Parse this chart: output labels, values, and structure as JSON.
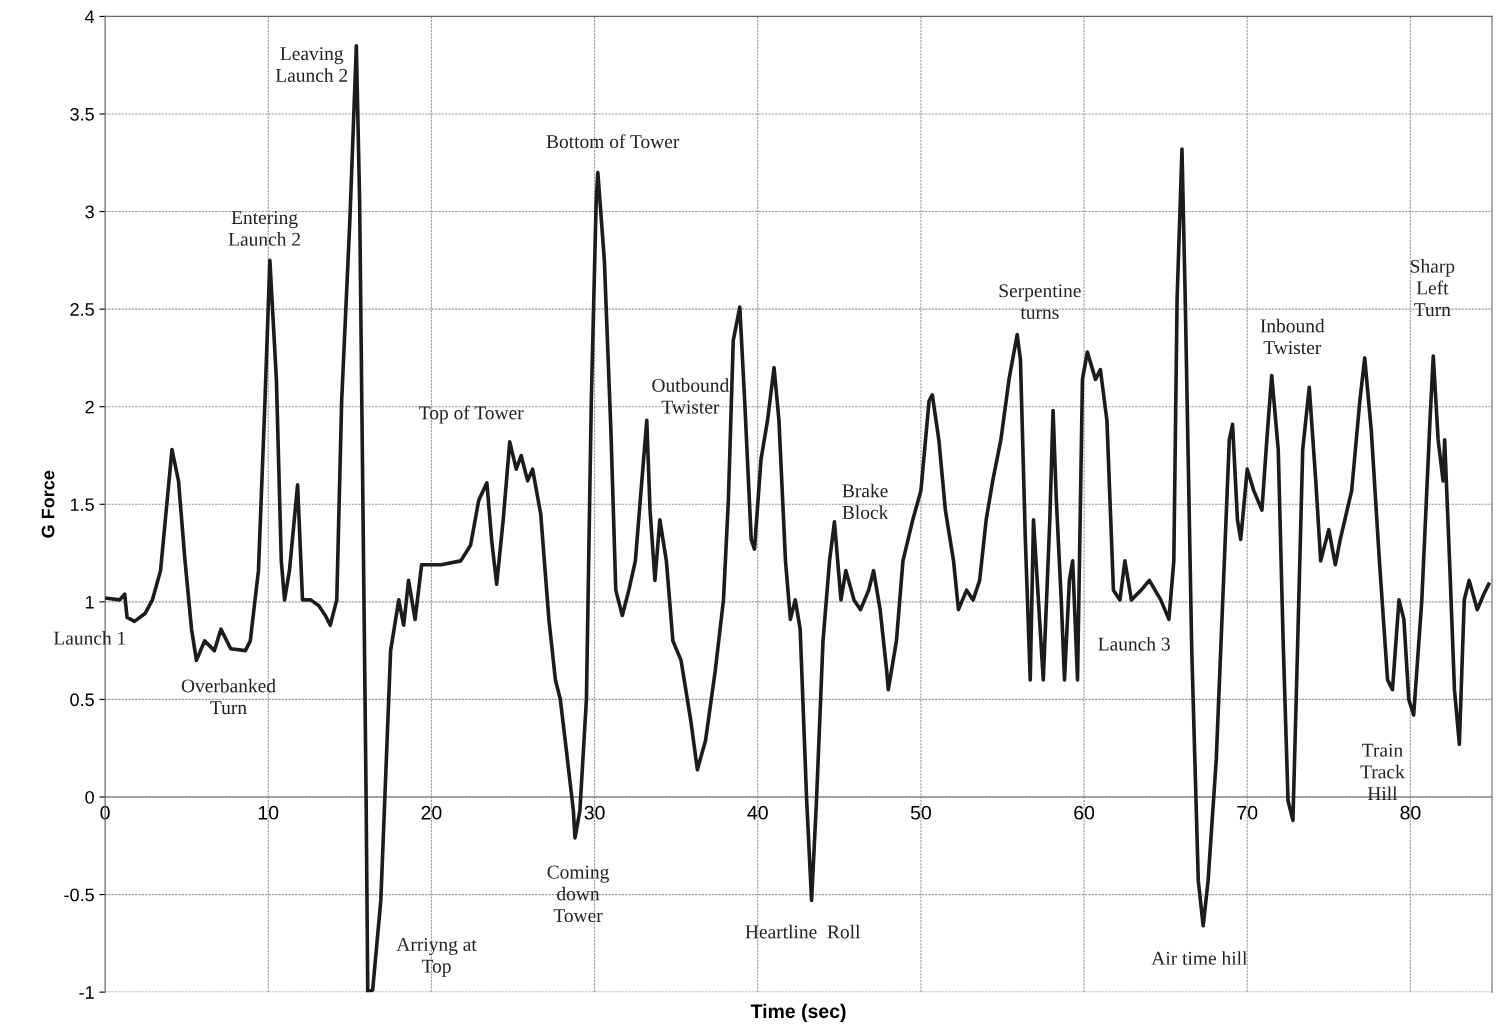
{
  "chart_data": {
    "type": "line",
    "xlabel": "Time (sec)",
    "ylabel": "G Force",
    "xlim": [
      0,
      85
    ],
    "xticks": [
      0,
      10,
      20,
      30,
      40,
      50,
      60,
      70,
      80
    ],
    "ylim": [
      -1,
      4
    ],
    "yticks": [
      -1,
      {
        "value": -0.5,
        "label": "-0.5"
      },
      0,
      0.5,
      1,
      1.5,
      2,
      2.5,
      3,
      3.5,
      4
    ],
    "grid": true,
    "legend": false,
    "marker": "none",
    "line_style": "solid",
    "series": [
      {
        "color": "#1c1c1c",
        "x": [
          0,
          0.9,
          1.2,
          1.35,
          1.8,
          2.45,
          2.9,
          3.4,
          3.75,
          4.1,
          4.5,
          4.9,
          5.3,
          5.6,
          6.1,
          6.7,
          7.1,
          7.7,
          8.6,
          8.9,
          9.4,
          9.8,
          10.1,
          10.5,
          10.8,
          11.0,
          11.3,
          11.8,
          12.1,
          12.6,
          13.1,
          13.5,
          13.8,
          14.2,
          14.5,
          15.0,
          15.4,
          15.6,
          16.0,
          16.1,
          16.4,
          16.9,
          17.5,
          18.0,
          18.3,
          18.6,
          19.0,
          19.4,
          20.6,
          21.8,
          22.4,
          22.9,
          23.4,
          23.7,
          24.0,
          24.4,
          24.8,
          25.2,
          25.5,
          25.9,
          26.2,
          26.7,
          27.2,
          27.6,
          27.9,
          28.2,
          28.7,
          28.8,
          29.1,
          29.5,
          29.8,
          30.1,
          30.2,
          30.6,
          31.0,
          31.3,
          31.7,
          32.1,
          32.5,
          32.8,
          33.2,
          33.4,
          33.7,
          34.0,
          34.4,
          34.8,
          35.3,
          35.9,
          36.3,
          36.8,
          37.4,
          37.9,
          38.2,
          38.5,
          38.9,
          39.2,
          39.6,
          39.8,
          40.2,
          40.6,
          41.0,
          41.3,
          41.7,
          42.0,
          42.3,
          42.6,
          43.0,
          43.3,
          43.6,
          44.0,
          44.4,
          44.7,
          45.1,
          45.4,
          45.9,
          46.3,
          46.8,
          47.1,
          47.5,
          47.9,
          48.0,
          48.5,
          48.9,
          49.5,
          50.0,
          50.5,
          50.7,
          51.1,
          51.5,
          52.0,
          52.3,
          52.8,
          53.2,
          53.6,
          54.0,
          54.4,
          54.9,
          55.4,
          55.9,
          56.1,
          56.4,
          56.7,
          56.9,
          57.2,
          57.5,
          57.9,
          58.1,
          58.3,
          58.6,
          58.8,
          59.1,
          59.3,
          59.6,
          59.9,
          60.2,
          60.7,
          61.0,
          61.4,
          61.8,
          62.2,
          62.5,
          62.9,
          63.5,
          64.0,
          64.7,
          65.2,
          65.5,
          65.7,
          66.0,
          66.2,
          66.6,
          67.0,
          67.3,
          67.6,
          68.1,
          68.5,
          68.9,
          69.1,
          69.4,
          69.6,
          70.0,
          70.4,
          70.9,
          71.2,
          71.5,
          71.9,
          72.2,
          72.5,
          72.8,
          73.0,
          73.4,
          73.8,
          74.2,
          74.5,
          75.0,
          75.4,
          75.7,
          76.4,
          76.9,
          77.2,
          77.6,
          78.1,
          78.6,
          78.9,
          79.3,
          79.6,
          79.9,
          80.2,
          80.7,
          81.2,
          81.4,
          81.7,
          82.0,
          82.1,
          82.4,
          82.7,
          83.0,
          83.3,
          83.6,
          84.1,
          84.5,
          84.8
        ],
        "values": [
          1.02,
          1.01,
          1.04,
          0.92,
          0.9,
          0.94,
          1.01,
          1.16,
          1.47,
          1.78,
          1.62,
          1.21,
          0.86,
          0.7,
          0.8,
          0.75,
          0.86,
          0.76,
          0.75,
          0.8,
          1.16,
          2.03,
          2.75,
          2.14,
          1.21,
          1.01,
          1.16,
          1.6,
          1.01,
          1.01,
          0.98,
          0.93,
          0.88,
          1.01,
          2.03,
          2.95,
          3.85,
          3.06,
          -0.02,
          -1.0,
          -0.99,
          -0.53,
          0.75,
          1.01,
          0.88,
          1.11,
          0.91,
          1.19,
          1.19,
          1.21,
          1.29,
          1.52,
          1.61,
          1.31,
          1.09,
          1.42,
          1.82,
          1.68,
          1.75,
          1.62,
          1.68,
          1.45,
          0.91,
          0.6,
          0.5,
          0.29,
          -0.07,
          -0.21,
          -0.07,
          0.5,
          2.03,
          3.06,
          3.2,
          2.75,
          1.88,
          1.06,
          0.93,
          1.06,
          1.21,
          1.52,
          1.93,
          1.47,
          1.11,
          1.42,
          1.21,
          0.8,
          0.7,
          0.39,
          0.14,
          0.29,
          0.65,
          1.01,
          1.52,
          2.34,
          2.51,
          2.03,
          1.32,
          1.27,
          1.73,
          1.93,
          2.2,
          1.93,
          1.21,
          0.91,
          1.01,
          0.86,
          -0.02,
          -0.53,
          -0.02,
          0.8,
          1.21,
          1.41,
          1.01,
          1.16,
          1.01,
          0.96,
          1.06,
          1.16,
          0.96,
          0.65,
          0.55,
          0.8,
          1.21,
          1.42,
          1.57,
          2.03,
          2.06,
          1.83,
          1.47,
          1.21,
          0.96,
          1.06,
          1.01,
          1.11,
          1.42,
          1.62,
          1.83,
          2.14,
          2.37,
          2.24,
          1.32,
          0.6,
          1.42,
          1.01,
          0.6,
          1.42,
          1.98,
          1.52,
          1.01,
          0.6,
          1.11,
          1.21,
          0.6,
          2.14,
          2.28,
          2.14,
          2.19,
          1.93,
          1.06,
          1.01,
          1.21,
          1.01,
          1.06,
          1.11,
          1.01,
          0.91,
          1.21,
          2.55,
          3.32,
          2.55,
          0.75,
          -0.43,
          -0.66,
          -0.43,
          0.19,
          1.01,
          1.83,
          1.91,
          1.42,
          1.32,
          1.68,
          1.57,
          1.47,
          1.83,
          2.16,
          1.78,
          0.8,
          -0.02,
          -0.12,
          0.5,
          1.78,
          2.1,
          1.62,
          1.21,
          1.37,
          1.19,
          1.32,
          1.57,
          2.03,
          2.25,
          1.88,
          1.21,
          0.6,
          0.55,
          1.01,
          0.91,
          0.5,
          0.42,
          1.01,
          1.93,
          2.26,
          1.83,
          1.62,
          1.83,
          1.21,
          0.55,
          0.27,
          1.01,
          1.11,
          0.96,
          1.04,
          1.09
        ]
      }
    ],
    "annotations": [
      "Launch 1",
      "Overbanked\nTurn",
      "Entering\nLaunch 2",
      "Leaving\nLaunch 2",
      "Arriyng at\nTop",
      "Top of Tower",
      "Bottom of Tower",
      "Coming\ndown\nTower",
      "Outbound\nTwister",
      "Heartline  Roll",
      "Brake\nBlock",
      "Serpentine\nturns",
      "Launch 3",
      "Air time hill",
      "Inbound\nTwister",
      "Train\nTrack\nHill",
      "Sharp\nLeft\nTurn"
    ]
  }
}
